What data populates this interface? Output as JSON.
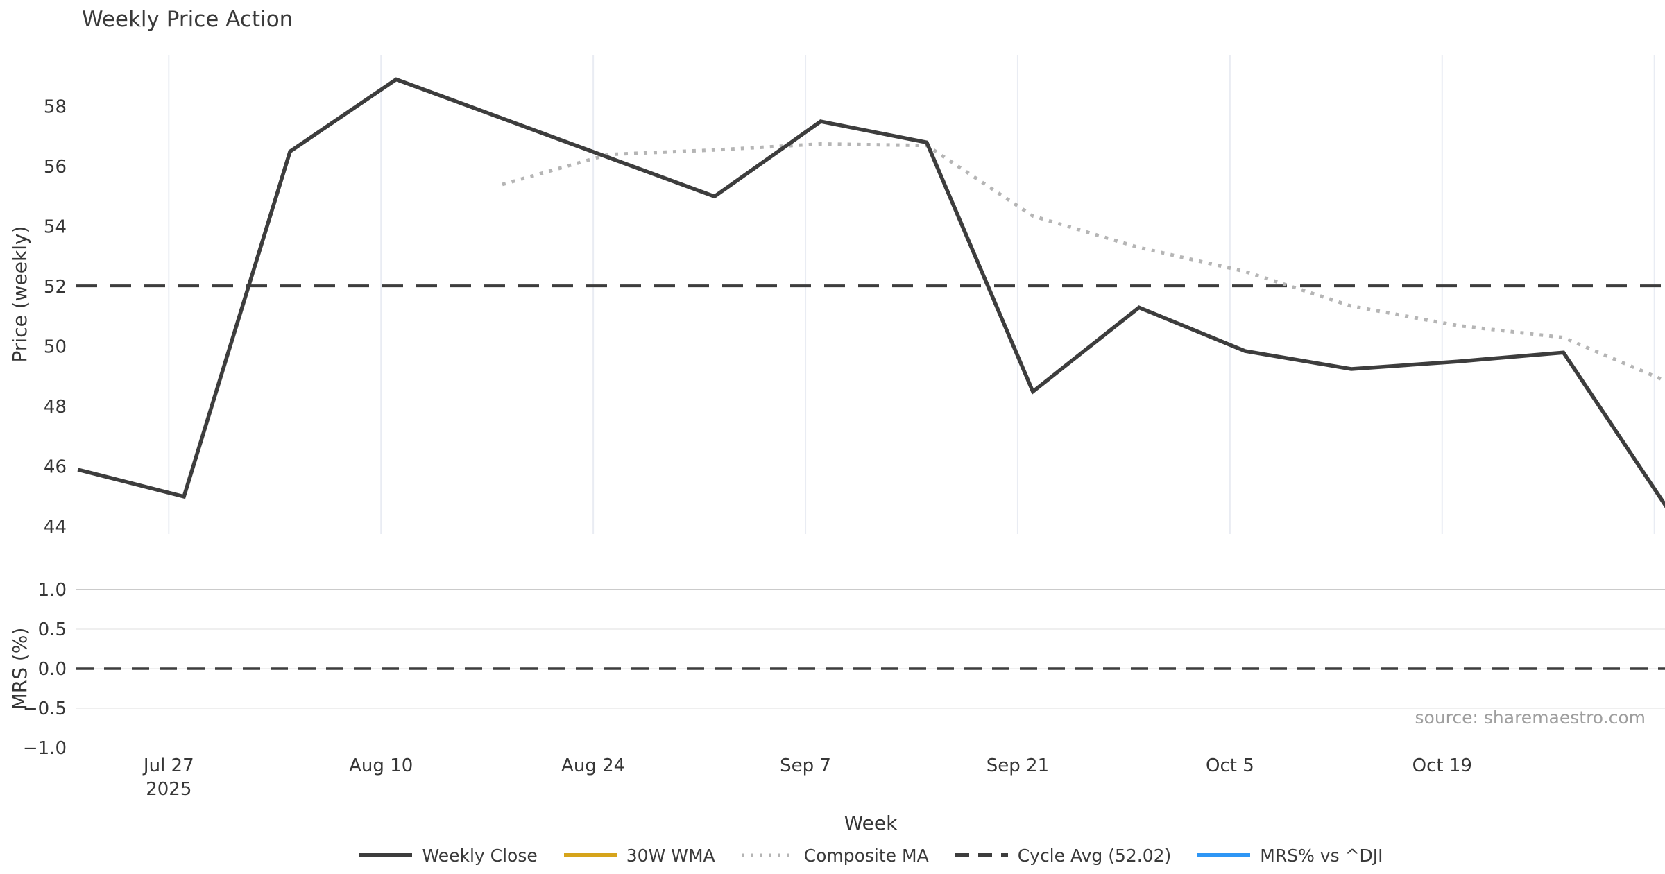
{
  "title": "Weekly Price Action",
  "source": "source: sharemaestro.com",
  "axes": {
    "x_label": "Week",
    "y1_label": "Price (weekly)",
    "y2_label": "MRS (%)"
  },
  "legend": [
    {
      "label": "Weekly Close",
      "color": "#3d3d3d",
      "style": "solid"
    },
    {
      "label": "30W WMA",
      "color": "#d6a41b",
      "style": "solid"
    },
    {
      "label": "Composite MA",
      "color": "#b5b5b5",
      "style": "dotted"
    },
    {
      "label": "Cycle Avg (52.02)",
      "color": "#3d3d3d",
      "style": "dashed"
    },
    {
      "label": "MRS% vs ^DJI",
      "color": "#2e96f5",
      "style": "solid"
    }
  ],
  "chart_data": {
    "type": "line",
    "title": "Weekly Price Action",
    "xlabel": "Week",
    "x_unit": "days (0 = Sun Jul 20 2025)",
    "xlim": [
      0.9,
      105.7
    ],
    "x": [
      1,
      8,
      15,
      22,
      29,
      36,
      43,
      50,
      57,
      64,
      71,
      78,
      85,
      92,
      99,
      106
    ],
    "point_dates": [
      "Jul 21",
      "Jul 28",
      "Aug 4",
      "Aug 11",
      "Aug 18",
      "Aug 25",
      "Sep 1",
      "Sep 8",
      "Sep 15",
      "Sep 22",
      "Sep 29",
      "Oct 6",
      "Oct 13",
      "Oct 20",
      "Oct 27",
      "Nov 3"
    ],
    "series": [
      {
        "name": "Weekly Close",
        "panel": 1,
        "color": "#3d3d3d",
        "style": "solid",
        "width": 5.5,
        "values": [
          45.9,
          45.0,
          56.5,
          58.9,
          57.6,
          56.3,
          55.0,
          57.5,
          56.8,
          48.5,
          51.3,
          49.85,
          49.25,
          49.5,
          49.8,
          44.5
        ]
      },
      {
        "name": "30W WMA",
        "panel": 1,
        "color": "#d6a41b",
        "style": "solid",
        "width": 5,
        "values": [
          null,
          null,
          null,
          null,
          null,
          null,
          null,
          null,
          null,
          null,
          null,
          null,
          null,
          null,
          null,
          null
        ]
      },
      {
        "name": "Composite MA",
        "panel": 1,
        "color": "#b5b5b5",
        "style": "dotted",
        "width": 5,
        "values": [
          null,
          null,
          null,
          null,
          55.4,
          56.4,
          56.55,
          56.75,
          56.7,
          54.35,
          53.3,
          52.5,
          51.35,
          50.7,
          50.3,
          48.8
        ]
      },
      {
        "name": "MRS% vs ^DJI",
        "panel": 2,
        "color": "#2e96f5",
        "style": "solid",
        "width": 4,
        "values": [
          null,
          null,
          null,
          null,
          null,
          null,
          null,
          null,
          null,
          null,
          null,
          null,
          null,
          null,
          null,
          null
        ]
      }
    ],
    "reference_lines": [
      {
        "label": "Cycle Avg (52.02)",
        "panel": 1,
        "value": 52.02,
        "color": "#3d3d3d",
        "style": "dashed",
        "width": 4,
        "dash": "30 19"
      },
      {
        "label": "zero-line",
        "panel": 2,
        "value": 0.0,
        "color": "#3d3d3d",
        "style": "dashed",
        "width": 3.5,
        "dash": "25 15"
      }
    ],
    "x_ticks": [
      {
        "day": 7,
        "label": "Jul 27",
        "sub": "2025"
      },
      {
        "day": 21,
        "label": "Aug 10",
        "sub": ""
      },
      {
        "day": 35,
        "label": "Aug 24",
        "sub": ""
      },
      {
        "day": 49,
        "label": "Sep 7",
        "sub": ""
      },
      {
        "day": 63,
        "label": "Sep 21",
        "sub": ""
      },
      {
        "day": 77,
        "label": "Oct 5",
        "sub": ""
      },
      {
        "day": 91,
        "label": "Oct 19",
        "sub": ""
      },
      {
        "day": 105,
        "label": "",
        "sub": ""
      }
    ],
    "panel1": {
      "ylabel": "Price (weekly)",
      "ylim": [
        43.75,
        59.72
      ],
      "yticks": [
        {
          "v": 44,
          "label": "44"
        },
        {
          "v": 46,
          "label": "46"
        },
        {
          "v": 48,
          "label": "48"
        },
        {
          "v": 50,
          "label": "50"
        },
        {
          "v": 52,
          "label": "52"
        },
        {
          "v": 54,
          "label": "54"
        },
        {
          "v": 56,
          "label": "56"
        },
        {
          "v": 58,
          "label": "58"
        }
      ],
      "grid": "vertical"
    },
    "panel2": {
      "ylabel": "MRS (%)",
      "ylim": [
        -1.0,
        1.0
      ],
      "yticks": [
        {
          "v": 1.0,
          "label": "1.0"
        },
        {
          "v": 0.5,
          "label": "0.5"
        },
        {
          "v": 0.0,
          "label": "0.0"
        },
        {
          "v": -0.5,
          "label": "−0.5"
        },
        {
          "v": -1.0,
          "label": "−1.0"
        }
      ],
      "grid": "horizontal"
    },
    "colors": {
      "grid_vertical": "#e9ecf3",
      "grid_top_edge": "#cbcbcb",
      "grid_horizontal": "#efefef",
      "text": "#363636",
      "source_text": "#9e9e9e"
    },
    "legend_position": "bottom-center"
  }
}
